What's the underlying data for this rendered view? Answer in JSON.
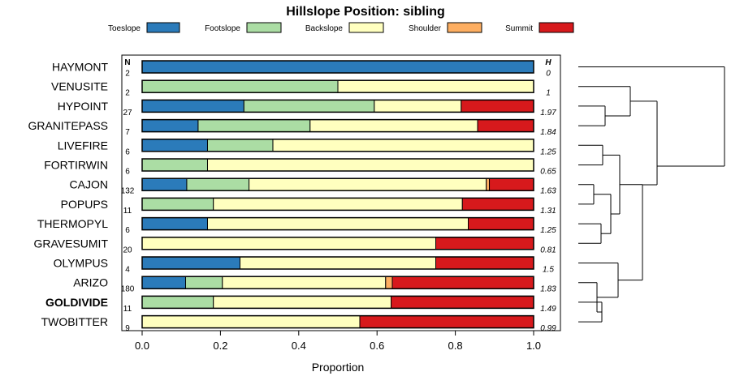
{
  "chart_data": {
    "type": "bar",
    "stacked": true,
    "orientation": "horizontal",
    "title": "Hillslope Position: sibling",
    "xlabel": "Proportion",
    "ylabel": "",
    "xlim": [
      0,
      1
    ],
    "xticks": [
      "0.0",
      "0.2",
      "0.4",
      "0.6",
      "0.8",
      "1.0"
    ],
    "legend_position": "top",
    "n_header": "N",
    "h_header": "H",
    "highlight_category": "GOLDIVIDE",
    "categories": [
      "HAYMONT",
      "VENUSITE",
      "HYPOINT",
      "GRANITEPASS",
      "LIVEFIRE",
      "FORTIRWIN",
      "CAJON",
      "POPUPS",
      "THERMOPYL",
      "GRAVESUMIT",
      "OLYMPUS",
      "ARIZO",
      "GOLDIVIDE",
      "TWOBITTER"
    ],
    "n": [
      "2",
      "2",
      "27",
      "7",
      "6",
      "6",
      "132",
      "11",
      "6",
      "20",
      "4",
      "180",
      "11",
      "9"
    ],
    "h": [
      "0",
      "1",
      "1.97",
      "1.84",
      "1.25",
      "0.65",
      "1.63",
      "1.31",
      "1.25",
      "0.81",
      "1.5",
      "1.83",
      "1.49",
      "0.99"
    ],
    "series": [
      {
        "name": "Toeslope",
        "color": "#2b7bba",
        "values": [
          1,
          0,
          0.26,
          0.143,
          0.167,
          0,
          0.114,
          0,
          0.167,
          0,
          0.25,
          0.111,
          0,
          0
        ]
      },
      {
        "name": "Footslope",
        "color": "#abdda4",
        "values": [
          0,
          0.5,
          0.333,
          0.286,
          0.167,
          0.167,
          0.159,
          0.182,
          0,
          0,
          0,
          0.094,
          0.182,
          0
        ]
      },
      {
        "name": "Backslope",
        "color": "#ffffbf",
        "values": [
          0,
          0.5,
          0.222,
          0.428,
          0.666,
          0.833,
          0.606,
          0.636,
          0.666,
          0.75,
          0.5,
          0.417,
          0.454,
          0.556
        ]
      },
      {
        "name": "Shoulder",
        "color": "#fdae61",
        "values": [
          0,
          0,
          0,
          0,
          0,
          0,
          0.008,
          0,
          0,
          0,
          0,
          0.017,
          0,
          0
        ]
      },
      {
        "name": "Summit",
        "color": "#d7191c",
        "values": [
          0,
          0,
          0.185,
          0.143,
          0,
          0,
          0.113,
          0.182,
          0.167,
          0.25,
          0.25,
          0.361,
          0.364,
          0.444
        ]
      }
    ]
  }
}
